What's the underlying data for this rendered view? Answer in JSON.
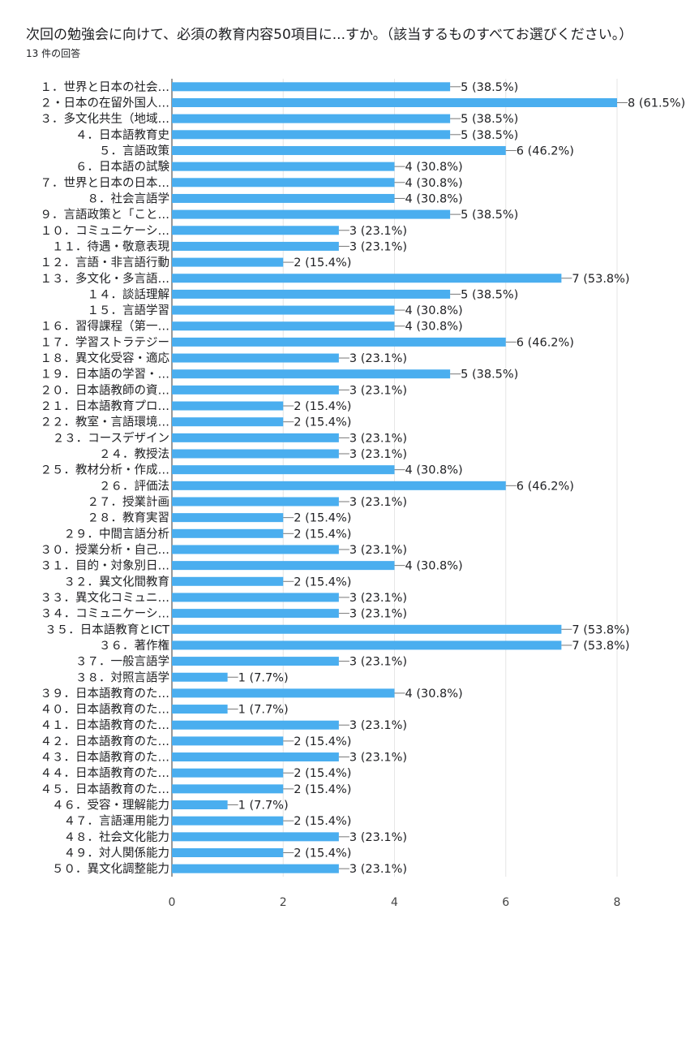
{
  "question": {
    "title": "次回の勉強会に向けて、必須の教育内容50項目に...すか。（該当するものすべてお選びください。）",
    "response_count": "13 件の回答"
  },
  "colors": {
    "bar": "#4aaeef",
    "grid": "#e6e6e6",
    "axis": "#333333",
    "text": "#202124"
  },
  "chart_data": {
    "type": "bar",
    "orientation": "horizontal",
    "title": "",
    "xlabel": "",
    "ylabel": "",
    "xlim": [
      0,
      8
    ],
    "xticks": [
      0,
      2,
      4,
      6,
      8
    ],
    "grid": true,
    "categories": [
      "１．世界と日本の社会…",
      "２・日本の在留外国人…",
      "３．多文化共生（地域…",
      "４．日本語教育史",
      "５．言語政策",
      "６．日本語の試験",
      "７．世界と日本の日本…",
      "８．社会言語学",
      "９．言語政策と「こと…",
      "１０．コミュニケーシ…",
      "１１．待遇・敬意表現",
      "１２．言語・非言語行動",
      "１３．多文化・多言語…",
      "１４．談話理解",
      "１５．言語学習",
      "１６．習得課程（第一…",
      "１７．学習ストラテジー",
      "１８．異文化受容・適応",
      "１９．日本語の学習・…",
      "２０．日本語教師の資…",
      "２１．日本語教育プロ…",
      "２２．教室・言語環境…",
      "２３．コースデザイン",
      "２４．教授法",
      "２５．教材分析・作成…",
      "２６．評価法",
      "２７．授業計画",
      "２８．教育実習",
      "２９．中間言語分析",
      "３０．授業分析・自己…",
      "３１．目的・対象別日…",
      "３２．異文化間教育",
      "３３．異文化コミュニ…",
      "３４．コミュニケーシ…",
      "３５．日本語教育とICT",
      "３６．著作権",
      "３７．一般言語学",
      "３８．対照言語学",
      "３９．日本語教育のた…",
      "４０．日本語教育のた…",
      "４１．日本語教育のた…",
      "４２．日本語教育のた…",
      "４３．日本語教育のた…",
      "４４．日本語教育のた…",
      "４５．日本語教育のた…",
      "４６．受容・理解能力",
      "４７．言語運用能力",
      "４８．社会文化能力",
      "４９．対人関係能力",
      "５０．異文化調整能力"
    ],
    "values": [
      5,
      8,
      5,
      5,
      6,
      4,
      4,
      4,
      5,
      3,
      3,
      2,
      7,
      5,
      4,
      4,
      6,
      3,
      5,
      3,
      2,
      2,
      3,
      3,
      4,
      6,
      3,
      2,
      2,
      3,
      4,
      2,
      3,
      3,
      7,
      7,
      3,
      1,
      4,
      1,
      3,
      2,
      3,
      2,
      2,
      1,
      2,
      3,
      2,
      3
    ],
    "value_labels": [
      "5 (38.5%)",
      "8 (61.5%)",
      "5 (38.5%)",
      "5 (38.5%)",
      "6 (46.2%)",
      "4 (30.8%)",
      "4 (30.8%)",
      "4 (30.8%)",
      "5 (38.5%)",
      "3 (23.1%)",
      "3 (23.1%)",
      "2 (15.4%)",
      "7 (53.8%)",
      "5 (38.5%)",
      "4 (30.8%)",
      "4 (30.8%)",
      "6 (46.2%)",
      "3 (23.1%)",
      "5 (38.5%)",
      "3 (23.1%)",
      "2 (15.4%)",
      "2 (15.4%)",
      "3 (23.1%)",
      "3 (23.1%)",
      "4 (30.8%)",
      "6 (46.2%)",
      "3 (23.1%)",
      "2 (15.4%)",
      "2 (15.4%)",
      "3 (23.1%)",
      "4 (30.8%)",
      "2 (15.4%)",
      "3 (23.1%)",
      "3 (23.1%)",
      "7 (53.8%)",
      "7 (53.8%)",
      "3 (23.1%)",
      "1 (7.7%)",
      "4 (30.8%)",
      "1 (7.7%)",
      "3 (23.1%)",
      "2 (15.4%)",
      "3 (23.1%)",
      "2 (15.4%)",
      "2 (15.4%)",
      "1 (7.7%)",
      "2 (15.4%)",
      "3 (23.1%)",
      "2 (15.4%)",
      "3 (23.1%)"
    ]
  }
}
